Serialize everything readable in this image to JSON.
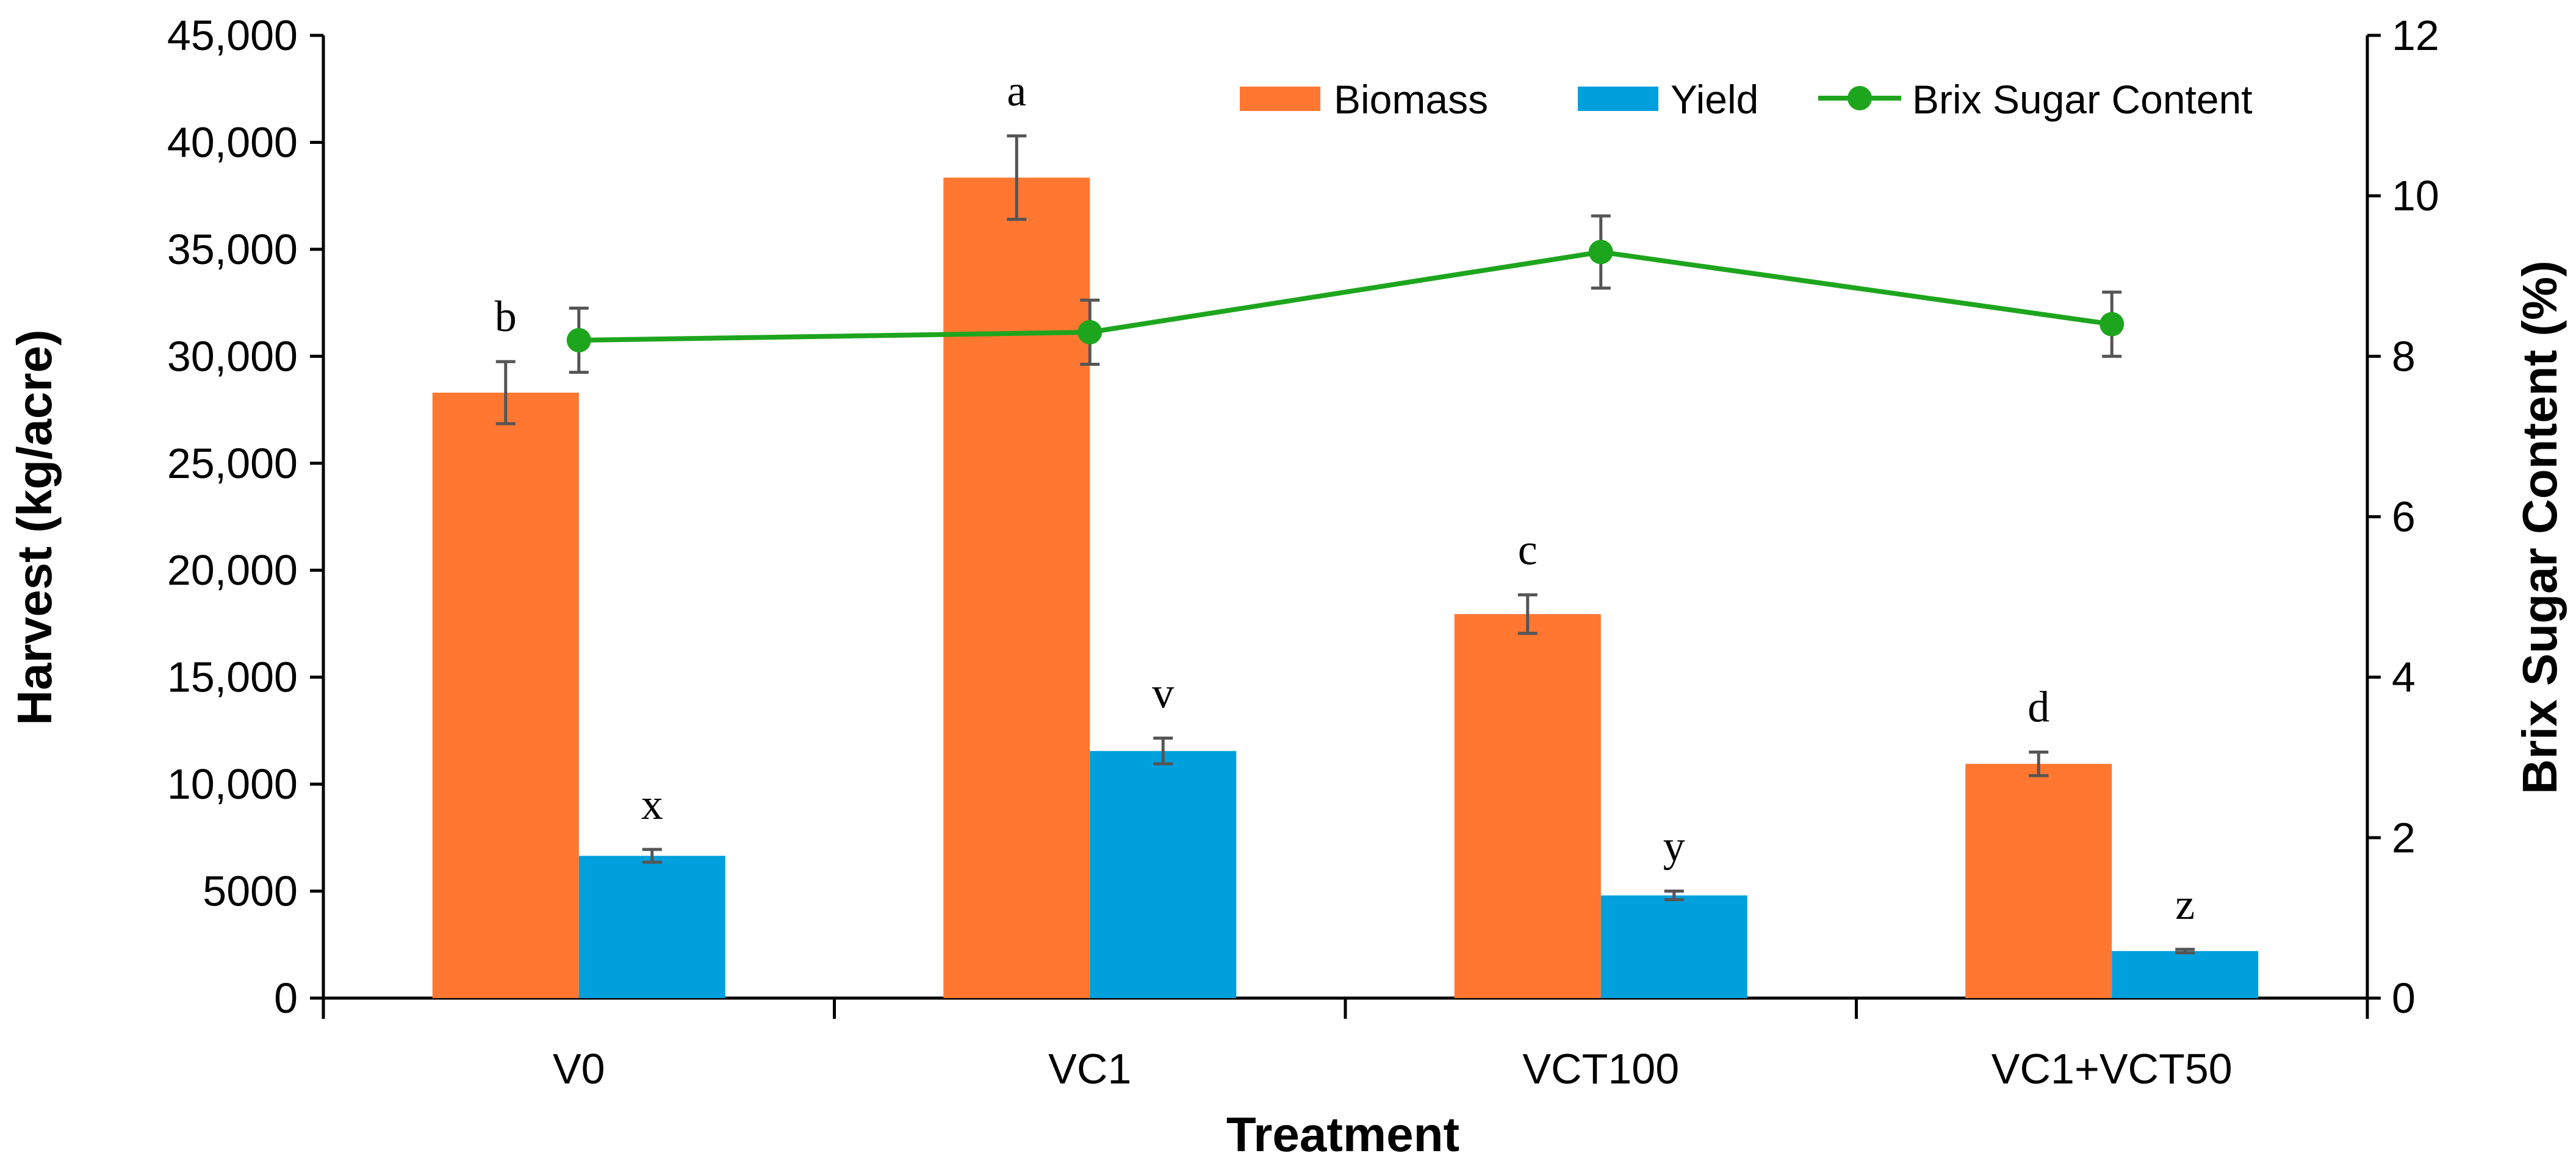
{
  "chart_data": {
    "type": "bar",
    "title": "",
    "xlabel": "Treatment",
    "ylabel": "Harvest (kg/acre)",
    "y2label": "Brix Sugar Content (%)",
    "categories": [
      "V0",
      "VC1",
      "VCT100",
      "VC1+VCT50"
    ],
    "ylim": [
      0,
      45000
    ],
    "y2lim": [
      0,
      12
    ],
    "y_ticks": [
      {
        "value": 0,
        "label": "0"
      },
      {
        "value": 5000,
        "label": "5000"
      },
      {
        "value": 10000,
        "label": "10,000"
      },
      {
        "value": 15000,
        "label": "15,000"
      },
      {
        "value": 20000,
        "label": "20,000"
      },
      {
        "value": 25000,
        "label": "25,000"
      },
      {
        "value": 30000,
        "label": "30,000"
      },
      {
        "value": 35000,
        "label": "35,000"
      },
      {
        "value": 40000,
        "label": "40,000"
      },
      {
        "value": 45000,
        "label": "45,000"
      }
    ],
    "y2_ticks": [
      {
        "value": 0,
        "label": "0"
      },
      {
        "value": 2,
        "label": "2"
      },
      {
        "value": 4,
        "label": "4"
      },
      {
        "value": 6,
        "label": "6"
      },
      {
        "value": 8,
        "label": "8"
      },
      {
        "value": 10,
        "label": "10"
      },
      {
        "value": 12,
        "label": "12"
      }
    ],
    "legend_position": "top-right",
    "grid": false,
    "series": [
      {
        "name": "Biomass",
        "type": "bar",
        "axis": "left",
        "color": "#FF7730",
        "values": [
          28300,
          38350,
          17950,
          10950
        ],
        "errors": [
          1450,
          1950,
          900,
          550
        ],
        "labels": [
          "b",
          "a",
          "c",
          "d"
        ]
      },
      {
        "name": "Yield",
        "type": "bar",
        "axis": "left",
        "color": "#00A0DC",
        "values": [
          6650,
          11550,
          4800,
          2200
        ],
        "errors": [
          300,
          600,
          200,
          80
        ],
        "labels": [
          "x",
          "v",
          "y",
          "z"
        ]
      },
      {
        "name": "Brix Sugar Content",
        "type": "line",
        "axis": "right",
        "color": "#1EA51E",
        "values": [
          8.2,
          8.3,
          9.3,
          8.4
        ],
        "errors": [
          0.4,
          0.4,
          0.45,
          0.4
        ]
      }
    ],
    "axis_color": "#000000",
    "error_bar_color": "#555555"
  }
}
